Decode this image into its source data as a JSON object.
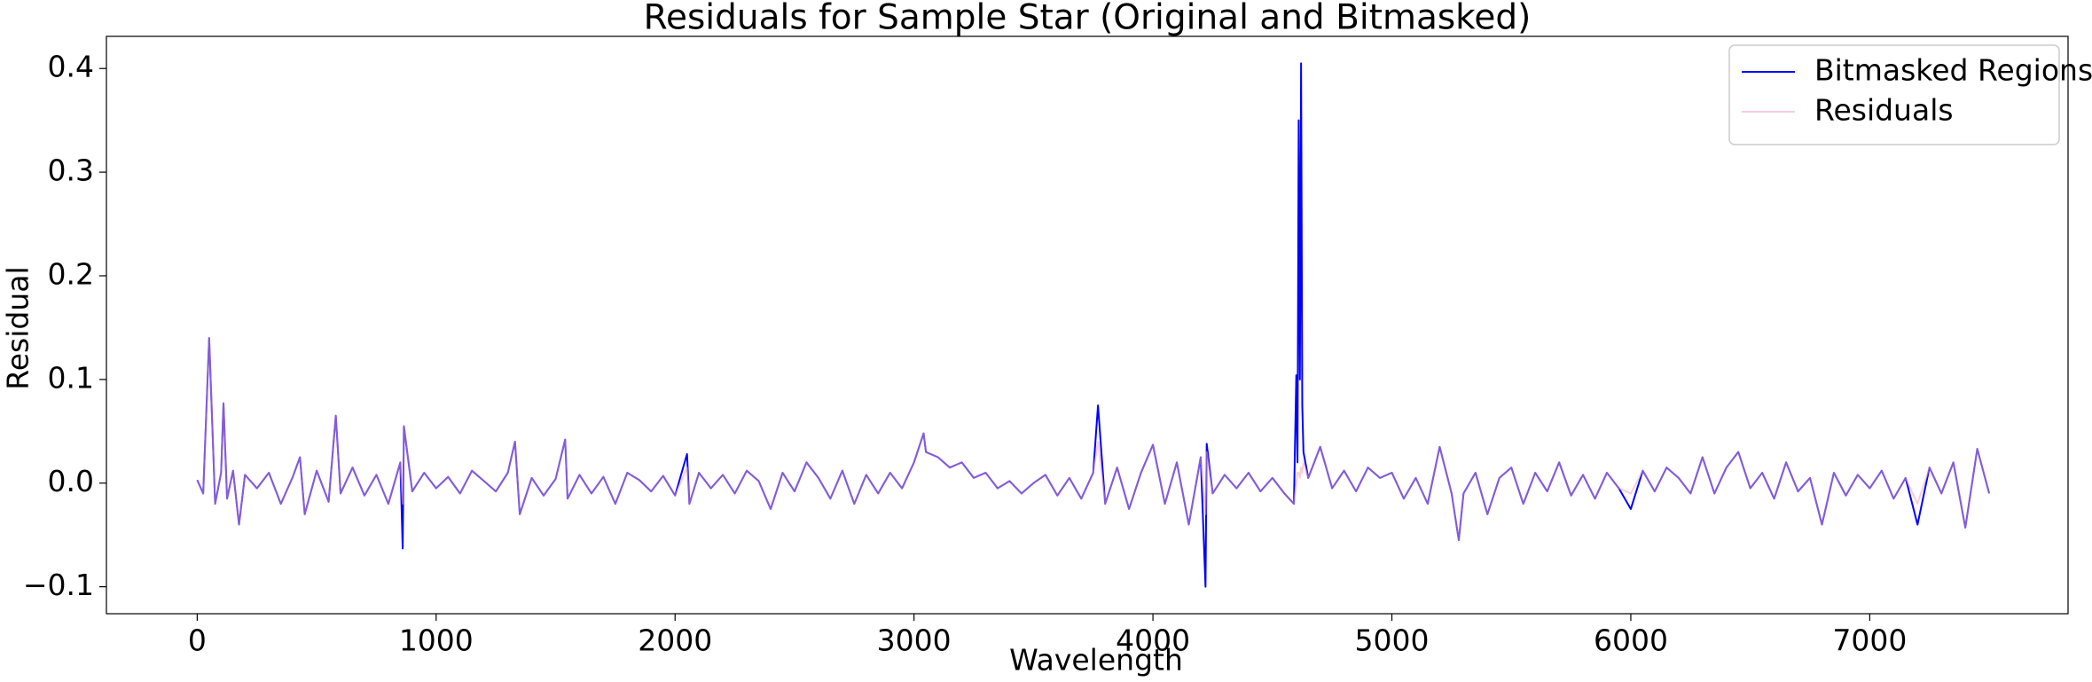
{
  "chart_data": {
    "type": "line",
    "title": "Residuals for Sample Star (Original and Bitmasked)",
    "xlabel": "Wavelength",
    "ylabel": "Residual",
    "x": [
      0,
      25,
      50,
      75,
      100,
      110,
      125,
      150,
      175,
      200,
      250,
      300,
      350,
      400,
      430,
      450,
      500,
      550,
      580,
      600,
      650,
      700,
      750,
      800,
      850,
      860,
      865,
      900,
      950,
      1000,
      1050,
      1100,
      1150,
      1200,
      1250,
      1300,
      1330,
      1350,
      1400,
      1450,
      1500,
      1540,
      1550,
      1600,
      1650,
      1700,
      1750,
      1800,
      1850,
      1900,
      1950,
      2000,
      2050,
      2060,
      2100,
      2150,
      2200,
      2250,
      2300,
      2350,
      2400,
      2450,
      2500,
      2550,
      2600,
      2650,
      2700,
      2750,
      2800,
      2850,
      2900,
      2950,
      3000,
      3040,
      3050,
      3100,
      3150,
      3200,
      3250,
      3300,
      3350,
      3400,
      3450,
      3500,
      3550,
      3600,
      3650,
      3700,
      3750,
      3770,
      3800,
      3850,
      3900,
      3950,
      4000,
      4050,
      4100,
      4150,
      4200,
      4220,
      4225,
      4250,
      4300,
      4350,
      4400,
      4450,
      4500,
      4550,
      4590,
      4600,
      4605,
      4610,
      4615,
      4620,
      4625,
      4630,
      4650,
      4700,
      4750,
      4800,
      4850,
      4900,
      4950,
      5000,
      5050,
      5100,
      5150,
      5200,
      5250,
      5280,
      5300,
      5350,
      5400,
      5450,
      5500,
      5550,
      5600,
      5650,
      5700,
      5750,
      5800,
      5850,
      5900,
      5950,
      6000,
      6050,
      6100,
      6150,
      6200,
      6250,
      6300,
      6350,
      6400,
      6450,
      6500,
      6550,
      6600,
      6650,
      6700,
      6750,
      6800,
      6850,
      6900,
      6950,
      7000,
      7050,
      7100,
      7150,
      7200,
      7250,
      7300,
      7350,
      7400,
      7450,
      7500
    ],
    "series": [
      {
        "name": "Bitmasked Regions",
        "color": "#0000ff",
        "alpha": 1,
        "values": [
          0.003,
          -0.01,
          0.14,
          -0.02,
          0.01,
          0.077,
          -0.015,
          0.012,
          -0.04,
          0.008,
          -0.005,
          0.01,
          -0.02,
          0.006,
          0.025,
          -0.03,
          0.012,
          -0.018,
          0.065,
          -0.01,
          0.015,
          -0.012,
          0.008,
          -0.02,
          0.02,
          -0.063,
          0.055,
          -0.008,
          0.01,
          -0.005,
          0.006,
          -0.01,
          0.012,
          0.002,
          -0.008,
          0.01,
          0.04,
          -0.03,
          0.005,
          -0.012,
          0.004,
          0.042,
          -0.015,
          0.008,
          -0.01,
          0.006,
          -0.02,
          0.01,
          0.003,
          -0.008,
          0.007,
          -0.012,
          0.028,
          -0.02,
          0.01,
          -0.005,
          0.008,
          -0.01,
          0.012,
          0.002,
          -0.025,
          0.01,
          -0.008,
          0.02,
          0.005,
          -0.015,
          0.012,
          -0.02,
          0.008,
          -0.01,
          0.01,
          -0.005,
          0.02,
          0.048,
          0.03,
          0.025,
          0.015,
          0.02,
          0.005,
          0.01,
          -0.005,
          0.002,
          -0.01,
          0.0,
          0.008,
          -0.012,
          0.005,
          -0.015,
          0.01,
          0.075,
          -0.02,
          0.015,
          -0.025,
          0.01,
          0.037,
          -0.02,
          0.02,
          -0.04,
          0.025,
          -0.1,
          0.038,
          -0.01,
          0.008,
          -0.005,
          0.01,
          -0.008,
          0.005,
          -0.01,
          -0.02,
          0.104,
          0.02,
          0.35,
          0.1,
          0.405,
          0.075,
          0.03,
          0.005,
          0.035,
          -0.005,
          0.012,
          -0.008,
          0.015,
          0.005,
          0.01,
          -0.015,
          0.005,
          -0.02,
          0.035,
          -0.01,
          -0.055,
          -0.01,
          0.01,
          -0.03,
          0.005,
          0.015,
          -0.02,
          0.01,
          -0.008,
          0.02,
          -0.012,
          0.008,
          -0.015,
          0.01,
          -0.005,
          -0.025,
          0.012,
          -0.008,
          0.015,
          0.005,
          -0.01,
          0.025,
          -0.01,
          0.015,
          0.03,
          -0.005,
          0.01,
          -0.015,
          0.02,
          -0.008,
          0.005,
          -0.04,
          0.01,
          -0.012,
          0.008,
          -0.005,
          0.012,
          -0.015,
          0.005,
          -0.04,
          0.015,
          -0.01,
          0.02,
          -0.043,
          0.033,
          -0.01
        ]
      },
      {
        "name": "Residuals",
        "color": "#f4a6b8",
        "alpha": 0.55,
        "values": [
          0.003,
          -0.01,
          0.14,
          -0.02,
          0.01,
          0.077,
          -0.015,
          0.012,
          -0.04,
          0.008,
          -0.005,
          0.01,
          -0.02,
          0.006,
          0.025,
          -0.03,
          0.012,
          -0.018,
          0.065,
          -0.01,
          0.015,
          -0.012,
          0.008,
          -0.02,
          0.02,
          -0.02,
          0.055,
          -0.008,
          0.01,
          -0.005,
          0.006,
          -0.01,
          0.012,
          0.002,
          -0.008,
          0.01,
          0.04,
          -0.03,
          0.005,
          -0.012,
          0.004,
          0.042,
          -0.015,
          0.008,
          -0.01,
          0.006,
          -0.02,
          0.01,
          0.003,
          -0.008,
          0.007,
          -0.012,
          0.015,
          -0.02,
          0.01,
          -0.005,
          0.008,
          -0.01,
          0.012,
          0.002,
          -0.025,
          0.01,
          -0.008,
          0.02,
          0.005,
          -0.015,
          0.012,
          -0.02,
          0.008,
          -0.01,
          0.01,
          -0.005,
          0.02,
          0.048,
          0.03,
          0.025,
          0.015,
          0.02,
          0.005,
          0.01,
          -0.005,
          0.002,
          -0.01,
          0.0,
          0.008,
          -0.012,
          0.005,
          -0.015,
          0.01,
          0.04,
          -0.02,
          0.015,
          -0.025,
          0.01,
          0.037,
          -0.02,
          0.02,
          -0.04,
          0.025,
          -0.03,
          0.03,
          -0.01,
          0.008,
          -0.005,
          0.01,
          -0.008,
          0.005,
          -0.01,
          -0.02,
          0.0,
          0.01,
          0.01,
          0.005,
          0.015,
          0.01,
          0.02,
          0.005,
          0.035,
          -0.005,
          0.012,
          -0.008,
          0.015,
          0.005,
          0.01,
          -0.015,
          0.005,
          -0.02,
          0.035,
          -0.01,
          -0.055,
          -0.01,
          0.01,
          -0.03,
          0.005,
          0.015,
          -0.02,
          0.01,
          -0.008,
          0.02,
          -0.012,
          0.008,
          -0.015,
          0.01,
          -0.005,
          -0.01,
          0.012,
          -0.008,
          0.015,
          0.005,
          -0.01,
          0.025,
          -0.01,
          0.015,
          0.03,
          -0.005,
          0.01,
          -0.015,
          0.02,
          -0.008,
          0.005,
          -0.04,
          0.01,
          -0.012,
          0.008,
          -0.005,
          0.012,
          -0.015,
          0.005,
          -0.02,
          0.015,
          -0.01,
          0.02,
          -0.043,
          0.033,
          -0.01
        ]
      }
    ],
    "xlim": [
      -380,
      7830
    ],
    "xticks": [
      0,
      1000,
      2000,
      3000,
      4000,
      5000,
      6000,
      7000
    ],
    "ylim": [
      -0.126,
      0.431
    ],
    "yticks": [
      {
        "value": -0.1,
        "label": "−0.1"
      },
      {
        "value": 0,
        "label": "0.0"
      },
      0.1,
      0.2,
      0.3,
      0.4
    ],
    "legend": "upper right"
  }
}
